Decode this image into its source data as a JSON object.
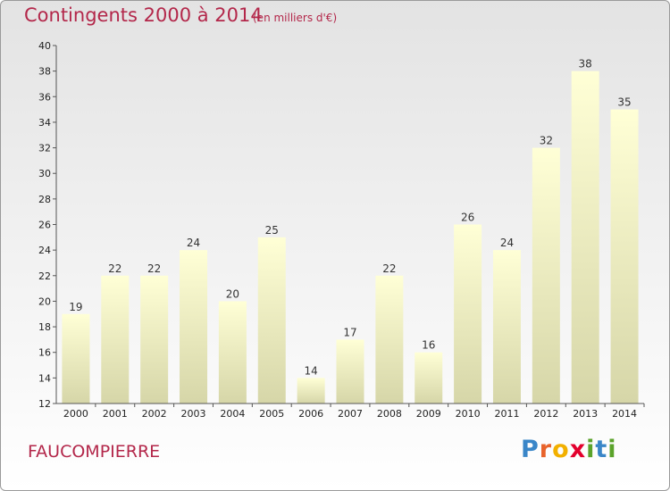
{
  "header": {
    "title": "Contingents 2000 à 2014",
    "subtitle": "(en milliers d'€)"
  },
  "footer": {
    "town": "FAUCOMPIERRE",
    "logo": [
      "P",
      "r",
      "o",
      "x",
      "i",
      "t",
      "i"
    ]
  },
  "colors": {
    "title": "#b3274a",
    "bar_top": "#ffffd6",
    "bar_bottom": "#d6d6a8",
    "logo": [
      "#3a86c8",
      "#e8632b",
      "#f2b000",
      "#e3002d",
      "#5ba32b",
      "#3a86c8",
      "#5ba32b"
    ]
  },
  "chart_data": {
    "type": "bar",
    "title": "Contingents 2000 à 2014",
    "subtitle": "(en milliers d'€)",
    "categories": [
      "2000",
      "2001",
      "2002",
      "2003",
      "2004",
      "2005",
      "2006",
      "2007",
      "2008",
      "2009",
      "2010",
      "2011",
      "2012",
      "2013",
      "2014"
    ],
    "values": [
      19,
      22,
      22,
      24,
      20,
      25,
      14,
      17,
      22,
      16,
      26,
      24,
      32,
      38,
      35
    ],
    "ylim": [
      12,
      40
    ],
    "yticks": [
      12,
      14,
      16,
      18,
      20,
      22,
      24,
      26,
      28,
      30,
      32,
      34,
      36,
      38,
      40
    ],
    "grid": false,
    "data_labels": true
  }
}
